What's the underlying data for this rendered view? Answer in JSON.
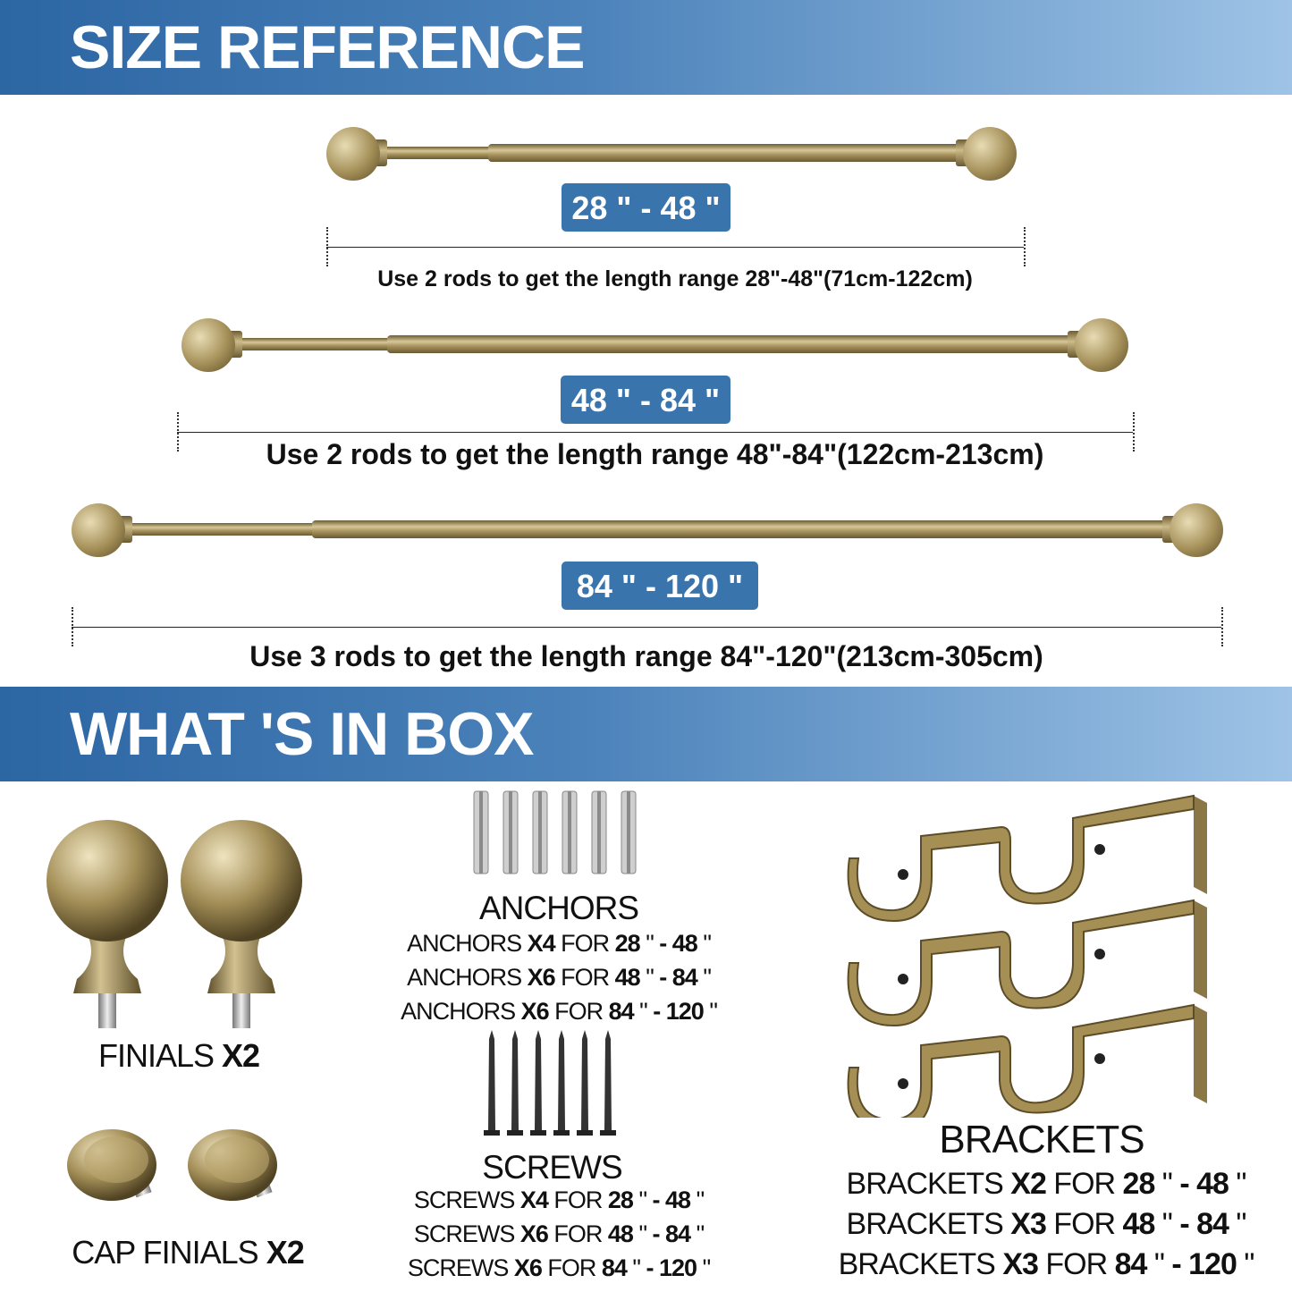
{
  "size_reference": {
    "title": "SIZE REFERENCE",
    "rods": [
      {
        "range": "28 \" - 48 \"",
        "caption": "Use 2 rods to get the length range 28\"-48\"(71cm-122cm)"
      },
      {
        "range": "48 \" - 84 \"",
        "caption": "Use 2 rods to get the length range 48\"-84\"(122cm-213cm)"
      },
      {
        "range": "84 \" - 120 \"",
        "caption": "Use 3 rods to get the length range 84\"-120\"(213cm-305cm)"
      }
    ]
  },
  "in_box": {
    "title": "WHAT 'S IN BOX",
    "finials": {
      "label": "FINIALS ",
      "qty": "X2"
    },
    "cap_finials": {
      "label": "CAP FINIALS ",
      "qty": "X2"
    },
    "anchors": {
      "label": "ANCHORS",
      "rows": [
        [
          {
            "t": "ANCHORS ",
            "b": false
          },
          {
            "t": "X4",
            "b": true
          },
          {
            "t": " FOR ",
            "b": false
          },
          {
            "t": "28",
            "b": true
          },
          {
            "t": " \" ",
            "b": false
          },
          {
            "t": "- 48",
            "b": true
          },
          {
            "t": " \"",
            "b": false
          }
        ],
        [
          {
            "t": "ANCHORS ",
            "b": false
          },
          {
            "t": "X6",
            "b": true
          },
          {
            "t": " FOR ",
            "b": false
          },
          {
            "t": "48",
            "b": true
          },
          {
            "t": " \" ",
            "b": false
          },
          {
            "t": "- 84",
            "b": true
          },
          {
            "t": " \"",
            "b": false
          }
        ],
        [
          {
            "t": "ANCHORS ",
            "b": false
          },
          {
            "t": "X6",
            "b": true
          },
          {
            "t": " FOR ",
            "b": false
          },
          {
            "t": "84",
            "b": true
          },
          {
            "t": " \" ",
            "b": false
          },
          {
            "t": "- 120",
            "b": true
          },
          {
            "t": " \"",
            "b": false
          }
        ]
      ]
    },
    "screws": {
      "label": "SCREWS",
      "rows": [
        [
          {
            "t": "SCREWS ",
            "b": false
          },
          {
            "t": "X4",
            "b": true
          },
          {
            "t": " FOR ",
            "b": false
          },
          {
            "t": "28",
            "b": true
          },
          {
            "t": " \" ",
            "b": false
          },
          {
            "t": "- 48",
            "b": true
          },
          {
            "t": " \"",
            "b": false
          }
        ],
        [
          {
            "t": "SCREWS ",
            "b": false
          },
          {
            "t": "X6",
            "b": true
          },
          {
            "t": " FOR ",
            "b": false
          },
          {
            "t": "48",
            "b": true
          },
          {
            "t": " \" ",
            "b": false
          },
          {
            "t": "- 84",
            "b": true
          },
          {
            "t": " \"",
            "b": false
          }
        ],
        [
          {
            "t": "SCREWS ",
            "b": false
          },
          {
            "t": "X6",
            "b": true
          },
          {
            "t": " FOR ",
            "b": false
          },
          {
            "t": "84",
            "b": true
          },
          {
            "t": " \" ",
            "b": false
          },
          {
            "t": "- 120",
            "b": true
          },
          {
            "t": " \"",
            "b": false
          }
        ]
      ]
    },
    "brackets": {
      "label": "BRACKETS",
      "rows": [
        [
          {
            "t": "BRACKETS ",
            "b": false
          },
          {
            "t": "X2",
            "b": true
          },
          {
            "t": " FOR ",
            "b": false
          },
          {
            "t": "28",
            "b": true
          },
          {
            "t": " \" ",
            "b": false
          },
          {
            "t": "- 48",
            "b": true
          },
          {
            "t": " \"",
            "b": false
          }
        ],
        [
          {
            "t": "BRACKETS ",
            "b": false
          },
          {
            "t": "X3",
            "b": true
          },
          {
            "t": " FOR ",
            "b": false
          },
          {
            "t": "48",
            "b": true
          },
          {
            "t": " \" ",
            "b": false
          },
          {
            "t": "- 84",
            "b": true
          },
          {
            "t": " \"",
            "b": false
          }
        ],
        [
          {
            "t": "BRACKETS ",
            "b": false
          },
          {
            "t": "X3",
            "b": true
          },
          {
            "t": " FOR ",
            "b": false
          },
          {
            "t": "84",
            "b": true
          },
          {
            "t": " \" ",
            "b": false
          },
          {
            "t": "- 120",
            "b": true
          },
          {
            "t": " \"",
            "b": false
          }
        ]
      ]
    }
  },
  "colors": {
    "band": "#2c66a3",
    "badge": "#3a74ad",
    "gold": "#a8945f"
  }
}
